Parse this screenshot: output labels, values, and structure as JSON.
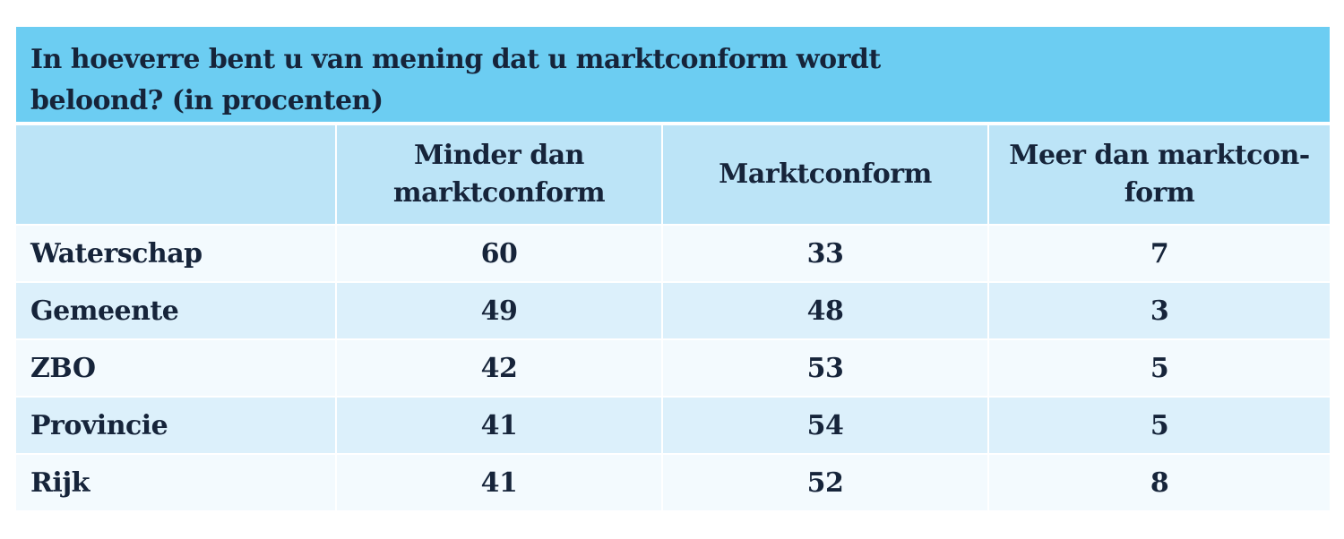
{
  "chart_data": {
    "type": "table",
    "title": "In hoeverre bent u van mening dat u marktconform wordt beloond? (in procenten)",
    "columns": [
      "Minder dan marktconform",
      "Marktconform",
      "Meer dan marktcon-form"
    ],
    "rows": [
      {
        "label": "Waterschap",
        "values": [
          60,
          33,
          7
        ]
      },
      {
        "label": "Gemeente",
        "values": [
          49,
          48,
          3
        ]
      },
      {
        "label": "ZBO",
        "values": [
          42,
          53,
          5
        ]
      },
      {
        "label": "Provincie",
        "values": [
          41,
          54,
          5
        ]
      },
      {
        "label": "Rijk",
        "values": [
          41,
          52,
          8
        ]
      }
    ]
  },
  "colors": {
    "title_background": "#6ccdf2",
    "header_background": "#bce4f7",
    "row_light": "#f3fafe",
    "row_dark": "#dcf0fb",
    "text": "#16243a"
  }
}
